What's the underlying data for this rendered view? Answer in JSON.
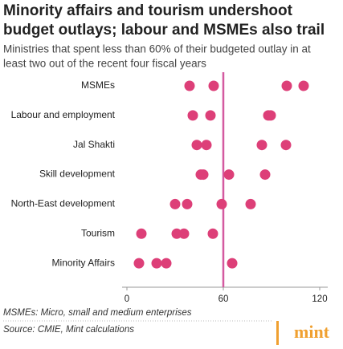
{
  "chart_data": {
    "type": "dot",
    "title": [
      "Minority affairs and tourism undershoot",
      "budget outlays; labour and MSMEs also trail"
    ],
    "subtitle": [
      "Ministries that spent less than 60% of their budgeted outlay in at",
      "least two out of the recent four fiscal years"
    ],
    "categories": [
      "MSMEs",
      "Labour and employment",
      "Jal Shakti",
      "Skill development",
      "North-East development",
      "Tourism",
      "Minority Affairs"
    ],
    "values": [
      [
        39,
        54,
        99.5,
        110
      ],
      [
        41,
        52,
        88,
        89.5
      ],
      [
        43.5,
        49.5,
        84,
        99
      ],
      [
        46,
        47.5,
        63.5,
        86
      ],
      [
        30,
        37.5,
        59,
        77
      ],
      [
        9,
        31,
        35.5,
        53.5
      ],
      [
        7.5,
        18.5,
        24.5,
        65.5
      ]
    ],
    "color": "#dd3f78",
    "reference_line": 60,
    "reference_color": "#d45aa0",
    "xlim": [
      0,
      125
    ],
    "xticks": [
      0,
      60,
      120
    ],
    "footnote": "MSMEs: Micro, small and medium enterprises",
    "source": "Source: CMIE, Mint calculations",
    "logo": "mint"
  }
}
